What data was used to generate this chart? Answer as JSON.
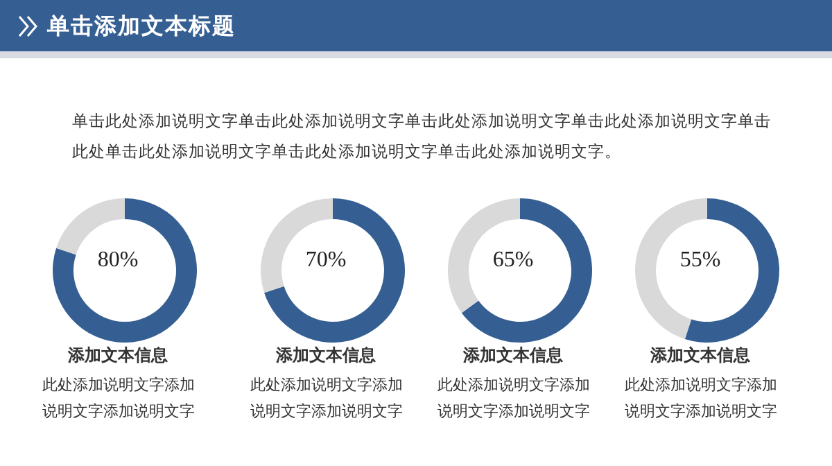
{
  "chart_data": [
    {
      "type": "other",
      "title": "单击添加文本标题",
      "annotations": [
        "单击此处添加说明文字单击此处添加说明文字单击此处添加说明文字单击此处添加说明文字单击此处单击此处添加说明文字单击此处添加说明文字单击此处添加说明文字。"
      ]
    },
    {
      "type": "donut",
      "title": "添加文本信息",
      "annotations": [
        "80%",
        "此处添加说明文字添加说明文字添加说明文字"
      ],
      "categories": [
        null,
        null
      ],
      "values": [
        80,
        20
      ],
      "colors": [
        "#355f93",
        "#d9d9d9"
      ]
    },
    {
      "type": "donut",
      "title": "添加文本信息",
      "annotations": [
        "70%",
        "此处添加说明文字添加说明文字添加说明文字"
      ],
      "categories": [
        null,
        null
      ],
      "values": [
        70,
        30
      ],
      "colors": [
        "#355f93",
        "#d9d9d9"
      ]
    },
    {
      "type": "donut",
      "title": "添加文本信息",
      "annotations": [
        "65%",
        "此处添加说明文字添加说明文字添加说明文字"
      ],
      "categories": [
        null,
        null
      ],
      "values": [
        65,
        35
      ],
      "colors": [
        "#355f93",
        "#d9d9d9"
      ]
    },
    {
      "type": "donut",
      "title": "添加文本信息",
      "annotations": [
        "55%",
        "此处添加说明文字添加说明文字添加说明文字"
      ],
      "categories": [
        null,
        null
      ],
      "values": [
        55,
        45
      ],
      "colors": [
        "#355f93",
        "#d9d9d9"
      ]
    }
  ]
}
